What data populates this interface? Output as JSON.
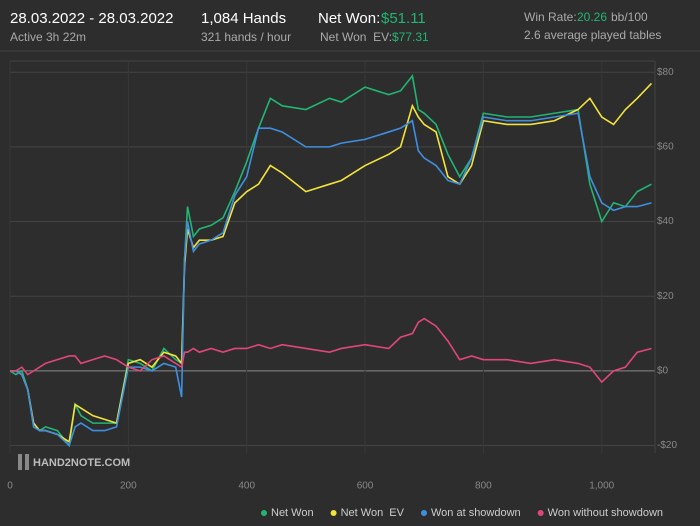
{
  "header": {
    "date_range": "28.03.2022 - 28.03.2022",
    "active": "Active 3h 22m",
    "hands": "1,084 Hands",
    "hands_per_hour": "321 hands / hour",
    "net_won_label": "Net Won:",
    "net_won_value": "$51.11",
    "net_won_ev_label": "Net Won  EV:",
    "net_won_ev_value": "$77.31",
    "win_rate_label": "Win Rate:",
    "win_rate_value": "20.26",
    "win_rate_unit": "bb/100",
    "tables": "2.6 average played tables"
  },
  "watermark": "HAND2NOTE.COM",
  "chart_data": {
    "type": "line",
    "x": [
      0,
      10,
      20,
      30,
      40,
      50,
      60,
      80,
      100,
      110,
      120,
      140,
      160,
      180,
      200,
      220,
      240,
      260,
      280,
      290,
      295,
      300,
      310,
      320,
      340,
      360,
      380,
      400,
      420,
      440,
      460,
      500,
      540,
      560,
      600,
      640,
      660,
      680,
      690,
      700,
      720,
      740,
      760,
      780,
      800,
      840,
      880,
      920,
      960,
      980,
      1000,
      1020,
      1040,
      1060,
      1084
    ],
    "series": [
      {
        "name": "Net Won",
        "color": "#22b573",
        "values": [
          0,
          -1,
          0,
          -5,
          -15,
          -16,
          -15,
          -16,
          -20,
          -9,
          -12,
          -14,
          -14,
          -14,
          3,
          2,
          0,
          6,
          3,
          2,
          30,
          44,
          36,
          38,
          39,
          41,
          48,
          56,
          65,
          73,
          71,
          70,
          73,
          72,
          76,
          74,
          75,
          79,
          70,
          69,
          66,
          58,
          52,
          57,
          69,
          68,
          68,
          69,
          70,
          50,
          40,
          45,
          44,
          48,
          50
        ]
      },
      {
        "name": "Net Won  EV",
        "color": "#f2e33c",
        "values": [
          0,
          0,
          -1,
          -5,
          -14,
          -16,
          -16,
          -17,
          -19,
          -9,
          -10,
          -12,
          -13,
          -14,
          2,
          3,
          1,
          5,
          4,
          2,
          28,
          38,
          33,
          35,
          35,
          36,
          45,
          48,
          50,
          55,
          53,
          48,
          50,
          51,
          55,
          58,
          60,
          71,
          68,
          66,
          64,
          52,
          50,
          55,
          67,
          66,
          66,
          67,
          70,
          73,
          68,
          66,
          70,
          73,
          77
        ]
      },
      {
        "name": "Won at showdown",
        "color": "#3f8fe0",
        "values": [
          0,
          0,
          -1,
          -5,
          -15,
          -16,
          -16,
          -17,
          -20,
          -15,
          -14,
          -16,
          -16,
          -15,
          1,
          1,
          0,
          2,
          1,
          -7,
          30,
          40,
          32,
          34,
          35,
          37,
          47,
          52,
          65,
          65,
          64,
          60,
          60,
          61,
          62,
          64,
          65,
          67,
          59,
          57,
          55,
          51,
          50,
          57,
          68,
          67,
          67,
          68,
          69,
          52,
          45,
          43,
          44,
          44,
          45
        ]
      },
      {
        "name": "Won without showdown",
        "color": "#e0467c",
        "values": [
          0,
          0,
          1,
          -1,
          0,
          1,
          2,
          3,
          4,
          4,
          2,
          3,
          4,
          3,
          1,
          0,
          3,
          4,
          2,
          1,
          5,
          5,
          6,
          5,
          6,
          5,
          6,
          6,
          7,
          6,
          7,
          6,
          5,
          6,
          7,
          6,
          9,
          10,
          13,
          14,
          12,
          8,
          3,
          4,
          3,
          3,
          2,
          3,
          2,
          1,
          -3,
          0,
          1,
          5,
          6
        ]
      }
    ],
    "xlim": [
      0,
      1090
    ],
    "ylim": [
      -22,
      83
    ],
    "xticks": [
      0,
      200,
      400,
      600,
      800,
      {
        "value": 1000,
        "label": "1,000"
      }
    ],
    "yticks": [
      {
        "value": -20,
        "label": "-$20"
      },
      {
        "value": 0,
        "label": "$0"
      },
      {
        "value": 20,
        "label": "$20"
      },
      {
        "value": 40,
        "label": "$40"
      },
      {
        "value": 60,
        "label": "$60"
      },
      {
        "value": 80,
        "label": "$80"
      }
    ],
    "grid": true
  }
}
